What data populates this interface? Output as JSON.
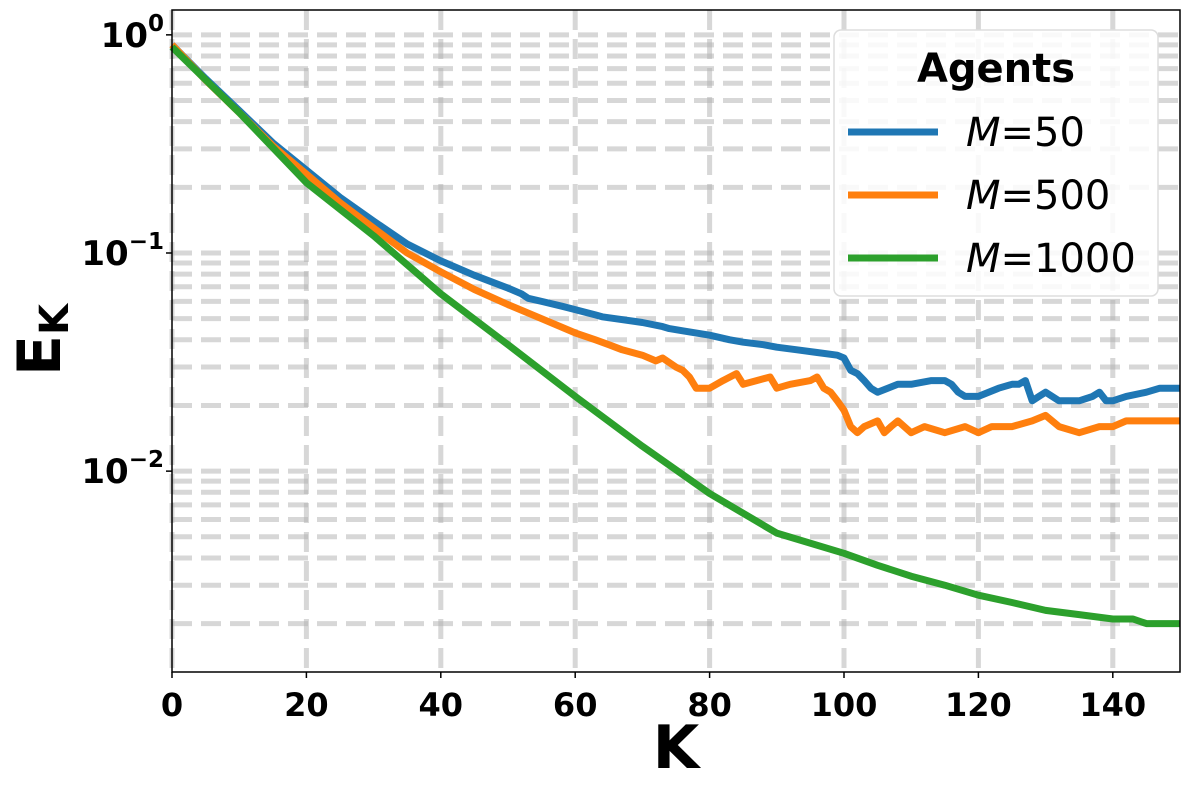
{
  "chart_data": {
    "type": "line",
    "xlabel": "K",
    "ylabel": "E",
    "ylabel_subscript": "K",
    "xlim": [
      0,
      150
    ],
    "ylim": [
      0.0012,
      1.3
    ],
    "yscale": "log",
    "grid": true,
    "x_ticks": [
      0,
      20,
      40,
      60,
      80,
      100,
      120,
      140
    ],
    "x_tick_labels": [
      "0",
      "20",
      "40",
      "60",
      "80",
      "100",
      "120",
      "140"
    ],
    "y_major_ticks": [
      1,
      0.1,
      0.01
    ],
    "y_tick_labels": [
      {
        "base": "10",
        "exp": "0"
      },
      {
        "base": "10",
        "exp": "−1"
      },
      {
        "base": "10",
        "exp": "−2"
      }
    ],
    "legend": {
      "title": "Agents",
      "placement": "top-right",
      "var": "M"
    },
    "series": [
      {
        "name": "M=50",
        "label_var": "M",
        "label_value": "=50",
        "color": "#1f77b4",
        "x": [
          0,
          5,
          10,
          15,
          20,
          25,
          30,
          35,
          40,
          45,
          50,
          52,
          53,
          55,
          58,
          60,
          62,
          63,
          64,
          66,
          70,
          73,
          74,
          76,
          80,
          83,
          85,
          88,
          90,
          93,
          96,
          99,
          100,
          101,
          102,
          103,
          104,
          105,
          108,
          110,
          113,
          115,
          116,
          117,
          118,
          120,
          123,
          125,
          126,
          127,
          128,
          129,
          130,
          132,
          135,
          137,
          138,
          139,
          140,
          142,
          145,
          147,
          150
        ],
        "y": [
          0.9,
          0.63,
          0.45,
          0.32,
          0.24,
          0.18,
          0.14,
          0.11,
          0.092,
          0.079,
          0.069,
          0.065,
          0.062,
          0.06,
          0.057,
          0.055,
          0.053,
          0.052,
          0.051,
          0.05,
          0.048,
          0.046,
          0.045,
          0.044,
          0.042,
          0.04,
          0.039,
          0.038,
          0.037,
          0.036,
          0.035,
          0.034,
          0.033,
          0.029,
          0.028,
          0.026,
          0.024,
          0.023,
          0.025,
          0.025,
          0.026,
          0.026,
          0.025,
          0.023,
          0.022,
          0.022,
          0.024,
          0.025,
          0.025,
          0.026,
          0.021,
          0.022,
          0.023,
          0.021,
          0.021,
          0.022,
          0.023,
          0.021,
          0.021,
          0.022,
          0.023,
          0.024,
          0.024
        ]
      },
      {
        "name": "M=500",
        "label_var": "M",
        "label_value": "=500",
        "color": "#ff7f0e",
        "x": [
          0,
          5,
          10,
          15,
          20,
          25,
          30,
          35,
          40,
          45,
          50,
          55,
          60,
          63,
          65,
          67,
          70,
          72,
          73,
          75,
          76,
          77,
          78,
          80,
          82,
          84,
          85,
          87,
          89,
          90,
          92,
          95,
          96,
          97,
          98,
          99,
          100,
          101,
          102,
          103,
          105,
          106,
          107,
          108,
          110,
          112,
          115,
          118,
          120,
          122,
          125,
          128,
          130,
          132,
          135,
          138,
          140,
          142,
          145,
          148,
          150
        ],
        "y": [
          0.9,
          0.62,
          0.44,
          0.31,
          0.23,
          0.17,
          0.13,
          0.1,
          0.082,
          0.068,
          0.058,
          0.05,
          0.043,
          0.04,
          0.038,
          0.036,
          0.034,
          0.032,
          0.033,
          0.03,
          0.029,
          0.027,
          0.024,
          0.024,
          0.026,
          0.028,
          0.025,
          0.026,
          0.027,
          0.024,
          0.025,
          0.026,
          0.027,
          0.024,
          0.023,
          0.021,
          0.019,
          0.016,
          0.015,
          0.016,
          0.017,
          0.015,
          0.016,
          0.017,
          0.015,
          0.016,
          0.015,
          0.016,
          0.015,
          0.016,
          0.016,
          0.017,
          0.018,
          0.016,
          0.015,
          0.016,
          0.016,
          0.017,
          0.017,
          0.017,
          0.017
        ]
      },
      {
        "name": "M=1000",
        "label_var": "M",
        "label_value": "=1000",
        "color": "#2ca02c",
        "x": [
          0,
          10,
          20,
          30,
          40,
          50,
          60,
          70,
          80,
          90,
          100,
          105,
          110,
          115,
          120,
          125,
          130,
          135,
          140,
          143,
          145,
          150
        ],
        "y": [
          0.88,
          0.44,
          0.21,
          0.12,
          0.065,
          0.038,
          0.022,
          0.013,
          0.0079,
          0.0052,
          0.0042,
          0.0037,
          0.0033,
          0.003,
          0.0027,
          0.0025,
          0.0023,
          0.0022,
          0.0021,
          0.0021,
          0.002,
          0.002
        ]
      }
    ]
  }
}
